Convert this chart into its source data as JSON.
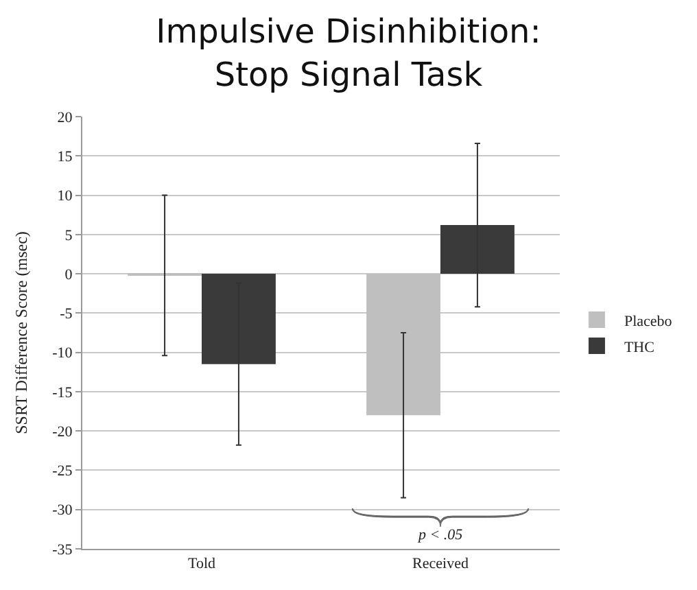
{
  "chart_data": {
    "type": "bar",
    "title": "Impulsive Disinhibition:\nStop Signal Task",
    "ylabel": "SSRT Difference Score (msec)",
    "categories": [
      "Told",
      "Received"
    ],
    "series": [
      {
        "name": "Placebo",
        "color": "#bfbfbf",
        "values": [
          -0.2,
          -18
        ],
        "errors": [
          10.2,
          10.5
        ]
      },
      {
        "name": "THC",
        "color": "#3a3a3a",
        "values": [
          -11.5,
          6.2
        ],
        "errors": [
          10.3,
          10.4
        ]
      }
    ],
    "ylim": [
      -35,
      20
    ],
    "yticks": [
      -35,
      -30,
      -25,
      -20,
      -15,
      -10,
      -5,
      0,
      5,
      10,
      15,
      20
    ],
    "grid": "y",
    "legend": "right",
    "annotations": [
      "p < .05"
    ]
  }
}
